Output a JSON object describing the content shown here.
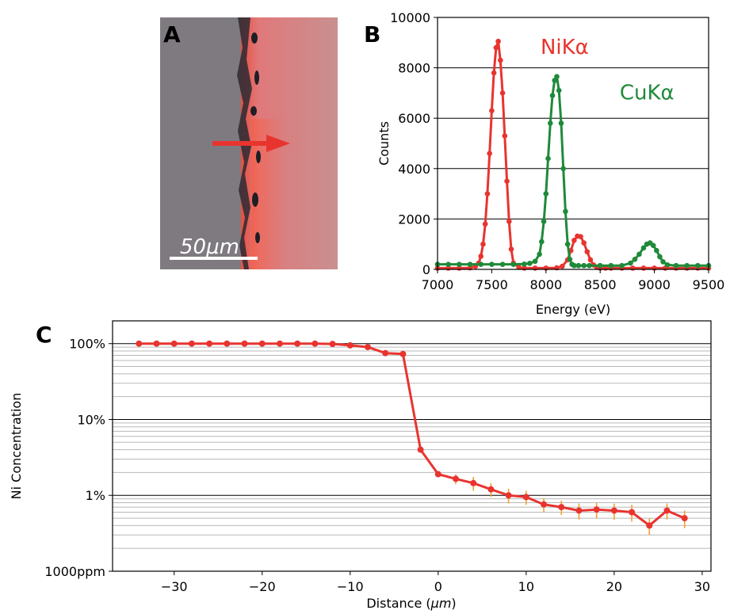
{
  "colors": {
    "ni": "#e8342f",
    "cu": "#1f8a3a",
    "error": "#f0a030",
    "grid_major": "#000000",
    "grid_minor": "#b8b8b8",
    "arrow": "#e8342f"
  },
  "panels": {
    "a": {
      "letter": "A",
      "scalebar_label": "50μm"
    },
    "b": {
      "letter": "B"
    },
    "c": {
      "letter": "C"
    }
  },
  "chart_data": [
    {
      "type": "line",
      "panel": "B",
      "xlabel": "Energy (eV)",
      "ylabel": "Counts",
      "xlim": [
        7000,
        9500
      ],
      "ylim": [
        0,
        10000
      ],
      "xticks": [
        "7000",
        "7500",
        "8000",
        "8500",
        "9000",
        "9500"
      ],
      "yticks": [
        "0",
        "2000",
        "4000",
        "6000",
        "8000",
        "10000"
      ],
      "grid": "horizontal",
      "annotations": [
        {
          "text": "NiKα",
          "x": 7950,
          "y": 8550,
          "series": "ni"
        },
        {
          "text": "CuKα",
          "x": 8680,
          "y": 6750,
          "series": "cu"
        }
      ],
      "series": [
        {
          "key": "ni",
          "color": "#e8342f",
          "x": [
            7000,
            7100,
            7200,
            7300,
            7350,
            7380,
            7400,
            7420,
            7440,
            7460,
            7480,
            7500,
            7520,
            7540,
            7560,
            7580,
            7600,
            7620,
            7640,
            7660,
            7680,
            7700,
            7750,
            7800,
            7900,
            8000,
            8100,
            8150,
            8200,
            8230,
            8260,
            8290,
            8320,
            8350,
            8380,
            8410,
            8440,
            8470,
            8500,
            8550,
            8600,
            8700,
            8800,
            8900,
            9000,
            9100,
            9200,
            9300,
            9400,
            9500
          ],
          "y": [
            50,
            50,
            50,
            60,
            120,
            250,
            520,
            1000,
            1800,
            3000,
            4600,
            6300,
            7800,
            8800,
            9050,
            8300,
            7000,
            5300,
            3500,
            1900,
            800,
            250,
            80,
            50,
            50,
            50,
            60,
            120,
            380,
            750,
            1150,
            1320,
            1300,
            1050,
            700,
            380,
            170,
            80,
            50,
            50,
            50,
            50,
            50,
            50,
            50,
            50,
            50,
            50,
            50,
            50
          ]
        },
        {
          "key": "cu",
          "color": "#1f8a3a",
          "x": [
            7000,
            7100,
            7200,
            7300,
            7400,
            7500,
            7600,
            7700,
            7800,
            7850,
            7900,
            7940,
            7960,
            7980,
            8000,
            8020,
            8040,
            8060,
            8080,
            8100,
            8120,
            8140,
            8160,
            8180,
            8200,
            8220,
            8240,
            8260,
            8300,
            8350,
            8400,
            8500,
            8600,
            8700,
            8780,
            8820,
            8860,
            8900,
            8930,
            8960,
            8990,
            9020,
            9050,
            9080,
            9120,
            9200,
            9300,
            9400,
            9500
          ],
          "y": [
            200,
            200,
            200,
            200,
            200,
            200,
            200,
            200,
            210,
            240,
            320,
            600,
            1100,
            1900,
            3000,
            4400,
            5800,
            6900,
            7500,
            7650,
            7100,
            5800,
            4000,
            2300,
            1000,
            400,
            200,
            150,
            150,
            150,
            150,
            150,
            150,
            150,
            250,
            400,
            600,
            850,
            1000,
            1050,
            950,
            750,
            500,
            300,
            180,
            150,
            150,
            150,
            150
          ]
        }
      ]
    },
    {
      "type": "line",
      "panel": "C",
      "xlabel": "Distance (μm)",
      "ylabel": "Ni Concentration",
      "xlim": [
        -37,
        31
      ],
      "ylim_log10": [
        -3,
        0.3
      ],
      "yscale": "log",
      "xticks": [
        "−30",
        "−20",
        "−10",
        "0",
        "10",
        "20",
        "30"
      ],
      "yticks": [
        "1000ppm",
        "1%",
        "10%",
        "100%"
      ],
      "grid": "horizontal major and minor",
      "series": [
        {
          "key": "ni_concentration",
          "color": "#e8342f",
          "x": [
            -34,
            -32,
            -30,
            -28,
            -26,
            -24,
            -22,
            -20,
            -18,
            -16,
            -14,
            -12,
            -10,
            -8,
            -6,
            -4,
            -2,
            0,
            2,
            4,
            6,
            8,
            10,
            12,
            14,
            16,
            18,
            20,
            22,
            24,
            26,
            28
          ],
          "y_percent": [
            100,
            100,
            100,
            100,
            100,
            100,
            100,
            100,
            100,
            100,
            100,
            99,
            95,
            90,
            75,
            73,
            4,
            1.9,
            1.65,
            1.45,
            1.2,
            1.0,
            0.95,
            0.76,
            0.7,
            0.63,
            0.65,
            0.63,
            0.6,
            0.4,
            0.63,
            0.5
          ],
          "y_error_percent": [
            0,
            0,
            0,
            0,
            0,
            0,
            0,
            0,
            0,
            0,
            0,
            0,
            0,
            0,
            0,
            0,
            0,
            0.15,
            0.25,
            0.3,
            0.25,
            0.22,
            0.2,
            0.16,
            0.15,
            0.15,
            0.15,
            0.15,
            0.15,
            0.1,
            0.15,
            0.13
          ]
        }
      ]
    }
  ]
}
